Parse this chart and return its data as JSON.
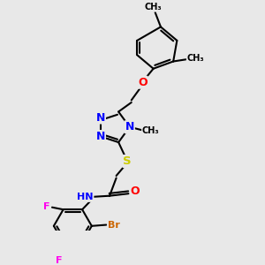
{
  "bg_color": "#e8e8e8",
  "atom_colors": {
    "N": "#0000ff",
    "O": "#ff0000",
    "S": "#cccc00",
    "F": "#ff00ee",
    "Br": "#cc6600",
    "C": "#000000",
    "H": "#000000"
  },
  "bond_lw": 1.5,
  "font_size": 8.0,
  "fig_size": [
    3.0,
    3.0
  ],
  "dpi": 100,
  "xlim": [
    0,
    10
  ],
  "ylim": [
    0,
    10
  ]
}
